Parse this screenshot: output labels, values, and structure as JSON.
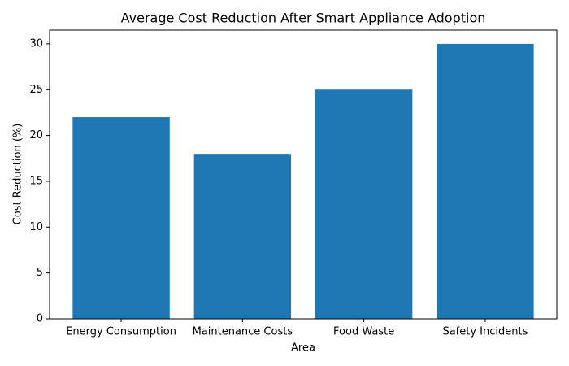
{
  "chart_data": {
    "type": "bar",
    "title": "Average Cost Reduction After Smart Appliance Adoption",
    "x_label": "Area",
    "y_label": "Cost Reduction (%)",
    "categories": [
      "Energy Consumption",
      "Maintenance Costs",
      "Food Waste",
      "Safety Incidents"
    ],
    "values": [
      22,
      18,
      25,
      30
    ],
    "color": "#1f77b4",
    "ylim": [
      0,
      31.5
    ],
    "yticks": [
      0,
      5,
      10,
      15,
      20,
      25,
      30
    ],
    "grid": false
  }
}
